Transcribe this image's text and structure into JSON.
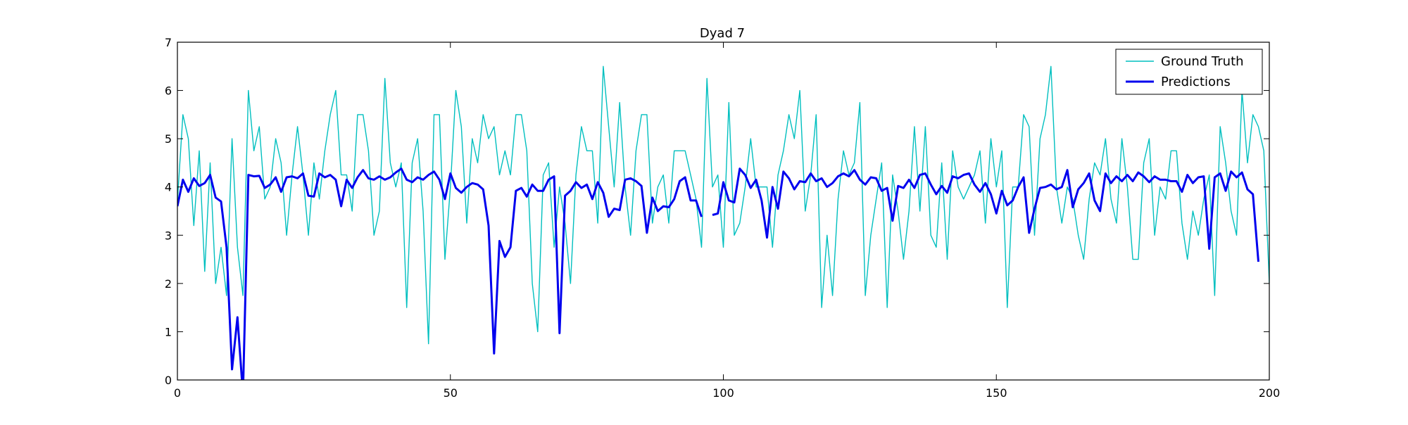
{
  "chart_data": {
    "type": "line",
    "title": "Dyad 7",
    "xlabel": "",
    "ylabel": "",
    "xlim": [
      0,
      200
    ],
    "ylim": [
      0,
      7
    ],
    "xticks": [
      0,
      50,
      100,
      150,
      200
    ],
    "yticks": [
      0,
      1,
      2,
      3,
      4,
      5,
      6,
      7
    ],
    "grid": false,
    "legend_position": "top-right",
    "series": [
      {
        "name": "Ground Truth",
        "color": "#00bfbf",
        "x_start": 0,
        "values": [
          3.7,
          5.5,
          5.0,
          3.2,
          4.75,
          2.25,
          4.5,
          2.0,
          2.75,
          1.75,
          5.0,
          2.75,
          1.75,
          6.0,
          4.75,
          5.25,
          3.75,
          4.0,
          5.0,
          4.5,
          3.0,
          4.25,
          5.25,
          4.25,
          3.0,
          4.5,
          3.75,
          4.75,
          5.5,
          6.0,
          4.25,
          4.25,
          3.5,
          5.5,
          5.5,
          4.75,
          3.0,
          3.5,
          6.25,
          4.5,
          4.0,
          4.5,
          1.5,
          4.5,
          5.0,
          3.5,
          0.75,
          5.5,
          5.5,
          2.5,
          4.0,
          6.0,
          5.25,
          3.25,
          5.0,
          4.5,
          5.5,
          5.0,
          5.25,
          4.25,
          4.75,
          4.25,
          5.5,
          5.5,
          4.75,
          2.0,
          1.0,
          4.25,
          4.5,
          2.75,
          4.0,
          3.25,
          2.0,
          4.25,
          5.25,
          4.75,
          4.75,
          3.25,
          6.5,
          5.25,
          4.0,
          5.75,
          4.0,
          3.0,
          4.75,
          5.5,
          5.5,
          3.25,
          4.0,
          4.25,
          3.25,
          4.75,
          4.75,
          4.75,
          4.25,
          3.75,
          2.75,
          6.25,
          4.0,
          4.25,
          2.75,
          5.75,
          3.0,
          3.25,
          4.0,
          5.0,
          4.0,
          4.0,
          4.0,
          2.75,
          4.25,
          4.75,
          5.5,
          5.0,
          6.0,
          3.5,
          4.25,
          5.5,
          1.5,
          3.0,
          1.75,
          3.75,
          4.75,
          4.25,
          4.5,
          5.75,
          1.75,
          3.0,
          3.75,
          4.5,
          1.5,
          4.25,
          3.5,
          2.5,
          3.5,
          5.25,
          3.5,
          5.25,
          3.0,
          2.75,
          4.5,
          2.5,
          4.75,
          4.0,
          3.75,
          4.0,
          4.25,
          4.75,
          3.25,
          5.0,
          4.0,
          4.75,
          1.5,
          4.0,
          4.0,
          5.5,
          5.25,
          3.0,
          5.0,
          5.5,
          6.5,
          4.0,
          3.25,
          4.0,
          3.75,
          3.0,
          2.5,
          3.75,
          4.5,
          4.25,
          5.0,
          3.75,
          3.25,
          5.0,
          4.0,
          2.5,
          2.5,
          4.5,
          5.0,
          3.0,
          4.0,
          3.75,
          4.75,
          4.75,
          3.25,
          2.5,
          3.5,
          3.0,
          3.75,
          4.25,
          1.75,
          5.25,
          4.5,
          3.5,
          3.0,
          6.0,
          4.5,
          5.5,
          5.25,
          4.75,
          2.0
        ]
      },
      {
        "name": "Predictions",
        "color": "#0000ee",
        "x_start": 0,
        "values": [
          3.6,
          4.15,
          3.9,
          4.18,
          4.02,
          4.08,
          4.25,
          3.78,
          3.7,
          2.75,
          0.22,
          1.3,
          -0.3,
          4.25,
          4.22,
          4.23,
          3.98,
          4.05,
          4.2,
          3.9,
          4.2,
          4.22,
          4.18,
          4.28,
          3.82,
          3.8,
          4.28,
          4.2,
          4.25,
          4.15,
          3.6,
          4.15,
          3.98,
          4.2,
          4.35,
          4.18,
          4.15,
          4.22,
          4.15,
          4.2,
          4.3,
          4.38,
          4.15,
          4.1,
          4.2,
          4.15,
          4.25,
          4.32,
          4.15,
          3.75,
          4.28,
          3.98,
          3.88,
          4.0,
          4.08,
          4.05,
          3.95,
          3.2,
          0.55,
          2.88,
          2.55,
          2.75,
          3.92,
          3.98,
          3.8,
          4.05,
          3.92,
          3.92,
          4.15,
          4.22,
          0.97,
          3.82,
          3.92,
          4.1,
          3.98,
          4.05,
          3.75,
          4.1,
          3.88,
          3.38,
          3.55,
          3.52,
          4.15,
          4.18,
          4.12,
          4.02,
          3.05,
          3.78,
          3.5,
          3.6,
          3.58,
          3.75,
          4.12,
          4.2,
          3.72,
          3.72,
          3.38,
          null,
          3.42,
          3.45,
          4.1,
          3.72,
          3.68,
          4.38,
          4.25,
          3.98,
          4.15,
          3.72,
          2.95,
          4.0,
          3.55,
          4.32,
          4.18,
          3.95,
          4.12,
          4.1,
          4.28,
          4.12,
          4.18,
          4.0,
          4.08,
          4.22,
          4.28,
          4.22,
          4.35,
          4.15,
          4.05,
          4.2,
          4.18,
          3.92,
          3.98,
          3.3,
          4.02,
          3.98,
          4.15,
          3.98,
          4.25,
          4.28,
          4.05,
          3.85,
          4.02,
          3.88,
          4.22,
          4.18,
          4.25,
          4.28,
          4.05,
          3.9,
          4.08,
          3.85,
          3.45,
          3.92,
          3.62,
          3.72,
          4.0,
          4.2,
          3.05,
          3.55,
          3.98,
          4.0,
          4.05,
          3.95,
          4.0,
          4.35,
          3.58,
          3.95,
          4.08,
          4.28,
          3.72,
          3.5,
          4.28,
          4.08,
          4.22,
          4.12,
          4.25,
          4.12,
          4.3,
          4.22,
          4.1,
          4.22,
          4.15,
          4.15,
          4.12,
          4.12,
          3.9,
          4.25,
          4.08,
          4.2,
          4.22,
          2.72,
          4.2,
          4.28,
          3.92,
          4.32,
          4.2,
          4.3,
          3.95,
          3.85,
          2.45
        ]
      }
    ]
  }
}
